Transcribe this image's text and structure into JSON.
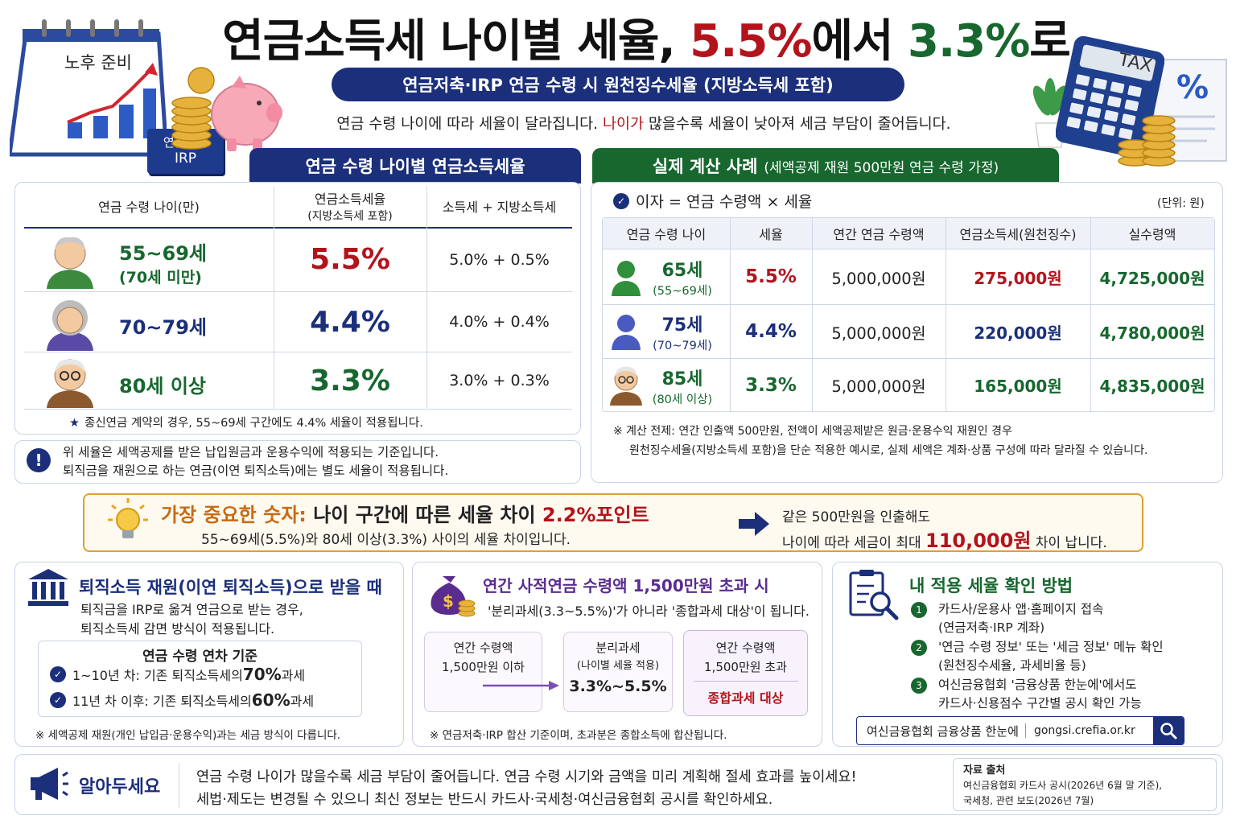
{
  "title": {
    "part1": "연금소득세 나이별 세율, ",
    "rate_from": "5.5%",
    "mid": "에서 ",
    "rate_to": "3.3%",
    "end": "로"
  },
  "subtitle": "연금저축·IRP 연금 수령 시 원천징수세율 (지방소득세 포함)",
  "intro": {
    "pre": "연금 수령 나이에 따라 세율이 달라집니다. ",
    "highlight": "나이가",
    "post": " 많을수록 세율이 낮아져 세금 부담이 줄어듭니다."
  },
  "deco": {
    "calendar_label": "노후 준비",
    "badge_line1": "연금저축",
    "badge_line2": "IRP",
    "calculator_label": "TAX",
    "doc_symbol": "%"
  },
  "left_table": {
    "header": "연금 수령 나이별 연금소득세율",
    "col_age": "연금 수령 나이(만)",
    "col_rate": "연금소득세율",
    "col_rate_sub": "(지방소득세 포함)",
    "col_split": "소득세 + 지방소득세",
    "rows": [
      {
        "age": "55~69세",
        "age_sub": "(70세 미만)",
        "rate": "5.5%",
        "split": "5.0% + 0.5%"
      },
      {
        "age": "70~79세",
        "age_sub": "",
        "rate": "4.4%",
        "split": "4.0% + 0.4%"
      },
      {
        "age": "80세 이상",
        "age_sub": "",
        "rate": "3.3%",
        "split": "3.0% + 0.3%"
      }
    ],
    "footnote": "종신연금 계약의 경우, 55~69세 구간에도 4.4% 세율이 적용됩니다."
  },
  "notice": {
    "line1": "위 세율은 세액공제를 받은 납입원금과 운용수익에 적용되는 기준입니다.",
    "line2": "퇴직금을 재원으로 하는 연금(이연 퇴직소득)에는 별도 세율이 적용됩니다."
  },
  "right_table": {
    "header": "실제 계산 사례",
    "header_sub": "(세액공제 재원 500만원 연금 수령 가정)",
    "formula": "이자 = 연금 수령액 × 세율",
    "unit": "(단위: 원)",
    "cols": [
      "연금 수령 나이",
      "세율",
      "연간 연금 수령액",
      "연금소득세(원천징수)",
      "실수령액"
    ],
    "rows": [
      {
        "age": "65세",
        "age_sub": "(55~69세)",
        "rate": "5.5%",
        "amount": "5,000,000원",
        "tax": "275,000원",
        "net": "4,725,000원"
      },
      {
        "age": "75세",
        "age_sub": "(70~79세)",
        "rate": "4.4%",
        "amount": "5,000,000원",
        "tax": "220,000원",
        "net": "4,780,000원"
      },
      {
        "age": "85세",
        "age_sub": "(80세 이상)",
        "rate": "3.3%",
        "amount": "5,000,000원",
        "tax": "165,000원",
        "net": "4,835,000원"
      }
    ],
    "note1": "※ 계산 전제: 연간 인출액 500만원, 전액이 세액공제받은 원금·운용수익 재원인 경우",
    "note2": "원천징수세율(지방소득세 포함)을 단순 적용한 예시로, 실제 세액은 계좌·상품 구성에 따라 달라질 수 있습니다."
  },
  "key": {
    "label": "가장 중요한 숫자:",
    "text": " 나이 구간에 따른 세율 차이 ",
    "value": "2.2%포인트",
    "sub": "55~69세(5.5%)와 80세 이상(3.3%) 사이의 세율 차이입니다.",
    "right1": "같은 500만원을 인출해도",
    "right2_pre": "나이에 따라 세금이 최대 ",
    "right2_val": "110,000원",
    "right2_post": " 차이 납니다."
  },
  "retire": {
    "title": "퇴직소득 재원(이연 퇴직소득)으로 받을 때",
    "desc1": "퇴직금을 IRP로 옮겨 연금으로 받는 경우,",
    "desc2": "퇴직소득세 감면 방식이 적용됩니다.",
    "box_title": "연금 수령 연차 기준",
    "item1_pre": "1~10년 차: 기존 퇴직소득세의 ",
    "item1_val": "70%",
    "item1_post": " 과세",
    "item2_pre": "11년 차 이후: 기존 퇴직소득세의 ",
    "item2_val": "60%",
    "item2_post": " 과세",
    "note": "※ 세액공제 재원(개인 납입금·운용수익)과는 세금 방식이 다릅니다."
  },
  "private": {
    "title": "연간 사적연금 수령액 1,500만원 초과 시",
    "desc": "'분리과세(3.3~5.5%)'가 아니라 '종합과세 대상'이 됩니다.",
    "box1_l1": "연간 수령액",
    "box1_l2": "1,500만원 이하",
    "box2_l1": "분리과세",
    "box2_l2": "(나이별 세율 적용)",
    "box2_l3": "3.3%~5.5%",
    "box3_l1": "연간 수령액",
    "box3_l2": "1,500만원 초과",
    "box3_l3": "종합과세 대상",
    "note": "※ 연금저축·IRP 합산 기준이며, 초과분은 종합소득에 합산됩니다."
  },
  "check": {
    "title": "내 적용 세율 확인 방법",
    "s1a": "카드사/운용사 앱·홈페이지 접속",
    "s1b": "(연금저축·IRP 계좌)",
    "s2a": "'연금 수령 정보' 또는 '세금 정보' 메뉴 확인",
    "s2b": "(원천징수세율, 과세비율 등)",
    "s3a": "여신금융협회 '금융상품 한눈에'에서도",
    "s3b": "카드사·신용점수 구간별 공시 확인 가능",
    "search_label": "여신금융협회 금융상품 한눈에",
    "search_url": "gongsi.crefia.or.kr"
  },
  "footer": {
    "label": "알아두세요",
    "line1": "연금 수령 나이가 많을수록 세금 부담이 줄어듭니다. 연금 수령 시기와 금액을 미리 계획해 절세 효과를 높이세요!",
    "line2": "세법·제도는 변경될 수 있으니 최신 정보는 반드시 카드사·국세청·여신금융협회 공시를 확인하세요.",
    "source_title": "자료 출처",
    "source1": "여신금융협회 카드사 공시(2026년 6월 말 기준),",
    "source2": "국세청, 관련 보도(2026년 7월)"
  },
  "colors": {
    "navy": "#1b2f7a",
    "red": "#b3141c",
    "green": "#17672e",
    "purple": "#5a2c8f",
    "orange": "#e0a030"
  }
}
